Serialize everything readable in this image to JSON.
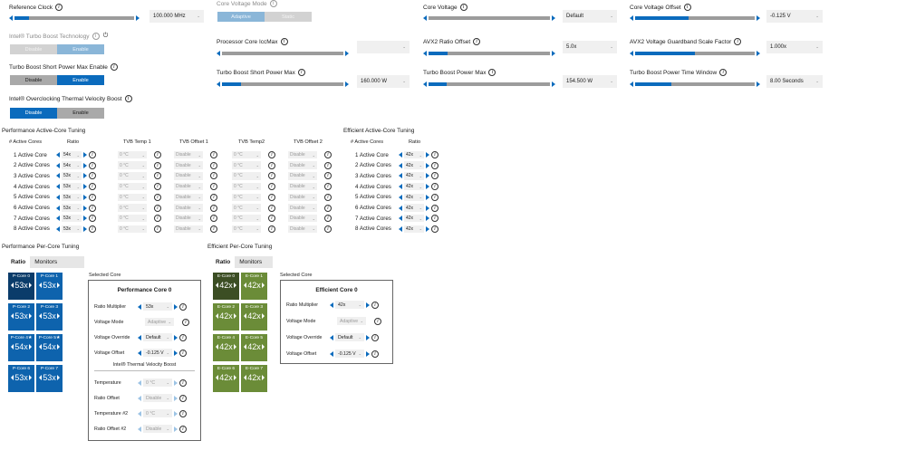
{
  "top": {
    "reference_clock": {
      "label": "Reference Clock",
      "value": "100.000 MHz",
      "fill": 0.12
    },
    "core_voltage_mode": {
      "label": "Core Voltage Mode",
      "options": [
        "Adaptive",
        "Static"
      ]
    },
    "core_voltage": {
      "label": "Core Voltage",
      "value": "Default",
      "fill": 0.0
    },
    "core_voltage_offset": {
      "label": "Core Voltage Offset",
      "value": "-0.125 V",
      "fill": 0.45
    },
    "turbo_boost_tech": {
      "label": "Intel® Turbo Boost Technology",
      "options": [
        "Disable",
        "Enable"
      ]
    },
    "processor_core_iccmax": {
      "label": "Processor Core IccMax",
      "value": "",
      "fill": 0.0
    },
    "avx2_ratio_offset": {
      "label": "AVX2 Ratio Offset",
      "value": "5.0x",
      "fill": 0.16
    },
    "avx2_guardband": {
      "label": "AVX2 Voltage Guardband Scale Factor",
      "value": "1.000x",
      "fill": 0.5
    },
    "tb_short_enable": {
      "label": "Turbo Boost Short Power Max Enable",
      "options": [
        "Disable",
        "Enable"
      ]
    },
    "tb_short_max": {
      "label": "Turbo Boost Short Power Max",
      "value": "160.000 W",
      "fill": 0.16
    },
    "tb_power_max": {
      "label": "Turbo Boost Power Max",
      "value": "154.500 W",
      "fill": 0.15
    },
    "tb_time_window": {
      "label": "Turbo Boost Power Time Window",
      "value": "8.00 Seconds",
      "fill": 0.3
    },
    "ocvb": {
      "label": "Intel® Overclocking Thermal Velocity Boost",
      "options": [
        "Disable",
        "Enable"
      ]
    }
  },
  "perf_active": {
    "title": "Performance Active-Core Tuning",
    "headers": [
      "# Active Cores",
      "Ratio",
      "TVB Temp 1",
      "TVB Offset 1",
      "TVB Temp2",
      "TVB Offset 2"
    ],
    "rows": [
      {
        "label": "1 Active Core",
        "ratio": "54x",
        "t1": "0 °C",
        "o1": "Disable",
        "t2": "0 °C",
        "o2": "Disable"
      },
      {
        "label": "2 Active Cores",
        "ratio": "54x",
        "t1": "0 °C",
        "o1": "Disable",
        "t2": "0 °C",
        "o2": "Disable"
      },
      {
        "label": "3 Active Cores",
        "ratio": "53x",
        "t1": "0 °C",
        "o1": "Disable",
        "t2": "0 °C",
        "o2": "Disable"
      },
      {
        "label": "4 Active Cores",
        "ratio": "53x",
        "t1": "0 °C",
        "o1": "Disable",
        "t2": "0 °C",
        "o2": "Disable"
      },
      {
        "label": "5 Active Cores",
        "ratio": "53x",
        "t1": "0 °C",
        "o1": "Disable",
        "t2": "0 °C",
        "o2": "Disable"
      },
      {
        "label": "6 Active Cores",
        "ratio": "53x",
        "t1": "0 °C",
        "o1": "Disable",
        "t2": "0 °C",
        "o2": "Disable"
      },
      {
        "label": "7 Active Cores",
        "ratio": "53x",
        "t1": "0 °C",
        "o1": "Disable",
        "t2": "0 °C",
        "o2": "Disable"
      },
      {
        "label": "8 Active Cores",
        "ratio": "53x",
        "t1": "0 °C",
        "o1": "Disable",
        "t2": "0 °C",
        "o2": "Disable"
      }
    ]
  },
  "eff_active": {
    "title": "Efficient Active-Core Tuning",
    "headers": [
      "# Active Cores",
      "Ratio"
    ],
    "rows": [
      {
        "label": "1 Active Core",
        "ratio": "42x"
      },
      {
        "label": "2 Active Cores",
        "ratio": "42x"
      },
      {
        "label": "3 Active Cores",
        "ratio": "42x"
      },
      {
        "label": "4 Active Cores",
        "ratio": "42x"
      },
      {
        "label": "5 Active Cores",
        "ratio": "42x"
      },
      {
        "label": "6 Active Cores",
        "ratio": "42x"
      },
      {
        "label": "7 Active Cores",
        "ratio": "42x"
      },
      {
        "label": "8 Active Cores",
        "ratio": "42x"
      }
    ]
  },
  "perf_per_core": {
    "title": "Performance Per-Core Tuning",
    "tabs": [
      "Ratio",
      "Monitors"
    ],
    "cores": [
      {
        "name": "P-Core 0",
        "ratio": "53x"
      },
      {
        "name": "P-Core 1",
        "ratio": "53x"
      },
      {
        "name": "P-Core 2",
        "ratio": "53x"
      },
      {
        "name": "P-Core 3",
        "ratio": "53x"
      },
      {
        "name": "P-Core 4★",
        "ratio": "54x"
      },
      {
        "name": "P-Core 5★",
        "ratio": "54x"
      },
      {
        "name": "P-Core 6",
        "ratio": "53x"
      },
      {
        "name": "P-Core 7",
        "ratio": "53x"
      }
    ],
    "selected_label": "Selected Core",
    "panel": {
      "title": "Performance Core 0",
      "ratio_label": "Ratio Multiplier",
      "ratio_value": "53x",
      "vmode_label": "Voltage Mode",
      "vmode_value": "Adaptive",
      "vover_label": "Voltage Override",
      "vover_value": "Default",
      "voff_label": "Voltage Offset",
      "voff_value": "-0.125 V",
      "tvb_header": "Intel® Thermal Velocity Boost",
      "temp_label": "Temperature",
      "temp_value": "0 °C",
      "roff_label": "Ratio Offset",
      "roff_value": "Disable",
      "temp2_label": "Temperature #2",
      "temp2_value": "0 °C",
      "roff2_label": "Ratio Offset #2",
      "roff2_value": "Disable"
    }
  },
  "eff_per_core": {
    "title": "Efficient Per-Core Tuning",
    "tabs": [
      "Ratio",
      "Monitors"
    ],
    "cores": [
      {
        "name": "E-Core 0",
        "ratio": "42x"
      },
      {
        "name": "E-Core 1",
        "ratio": "42x"
      },
      {
        "name": "E-Core 2",
        "ratio": "42x"
      },
      {
        "name": "E-Core 3",
        "ratio": "42x"
      },
      {
        "name": "E-Core 4",
        "ratio": "42x"
      },
      {
        "name": "E-Core 5",
        "ratio": "42x"
      },
      {
        "name": "E-Core 6",
        "ratio": "42x"
      },
      {
        "name": "E-Core 7",
        "ratio": "42x"
      }
    ],
    "selected_label": "Selected Core",
    "panel": {
      "title": "Efficient Core 0",
      "ratio_label": "Ratio Multiplier",
      "ratio_value": "42x",
      "vmode_label": "Voltage Mode",
      "vmode_value": "Adaptive",
      "vover_label": "Voltage Override",
      "vover_value": "Default",
      "voff_label": "Voltage Offset",
      "voff_value": "-0.125 V"
    }
  },
  "icons": {
    "info": "info-icon",
    "power": "power-icon",
    "chevron": "chevron-down-icon"
  }
}
